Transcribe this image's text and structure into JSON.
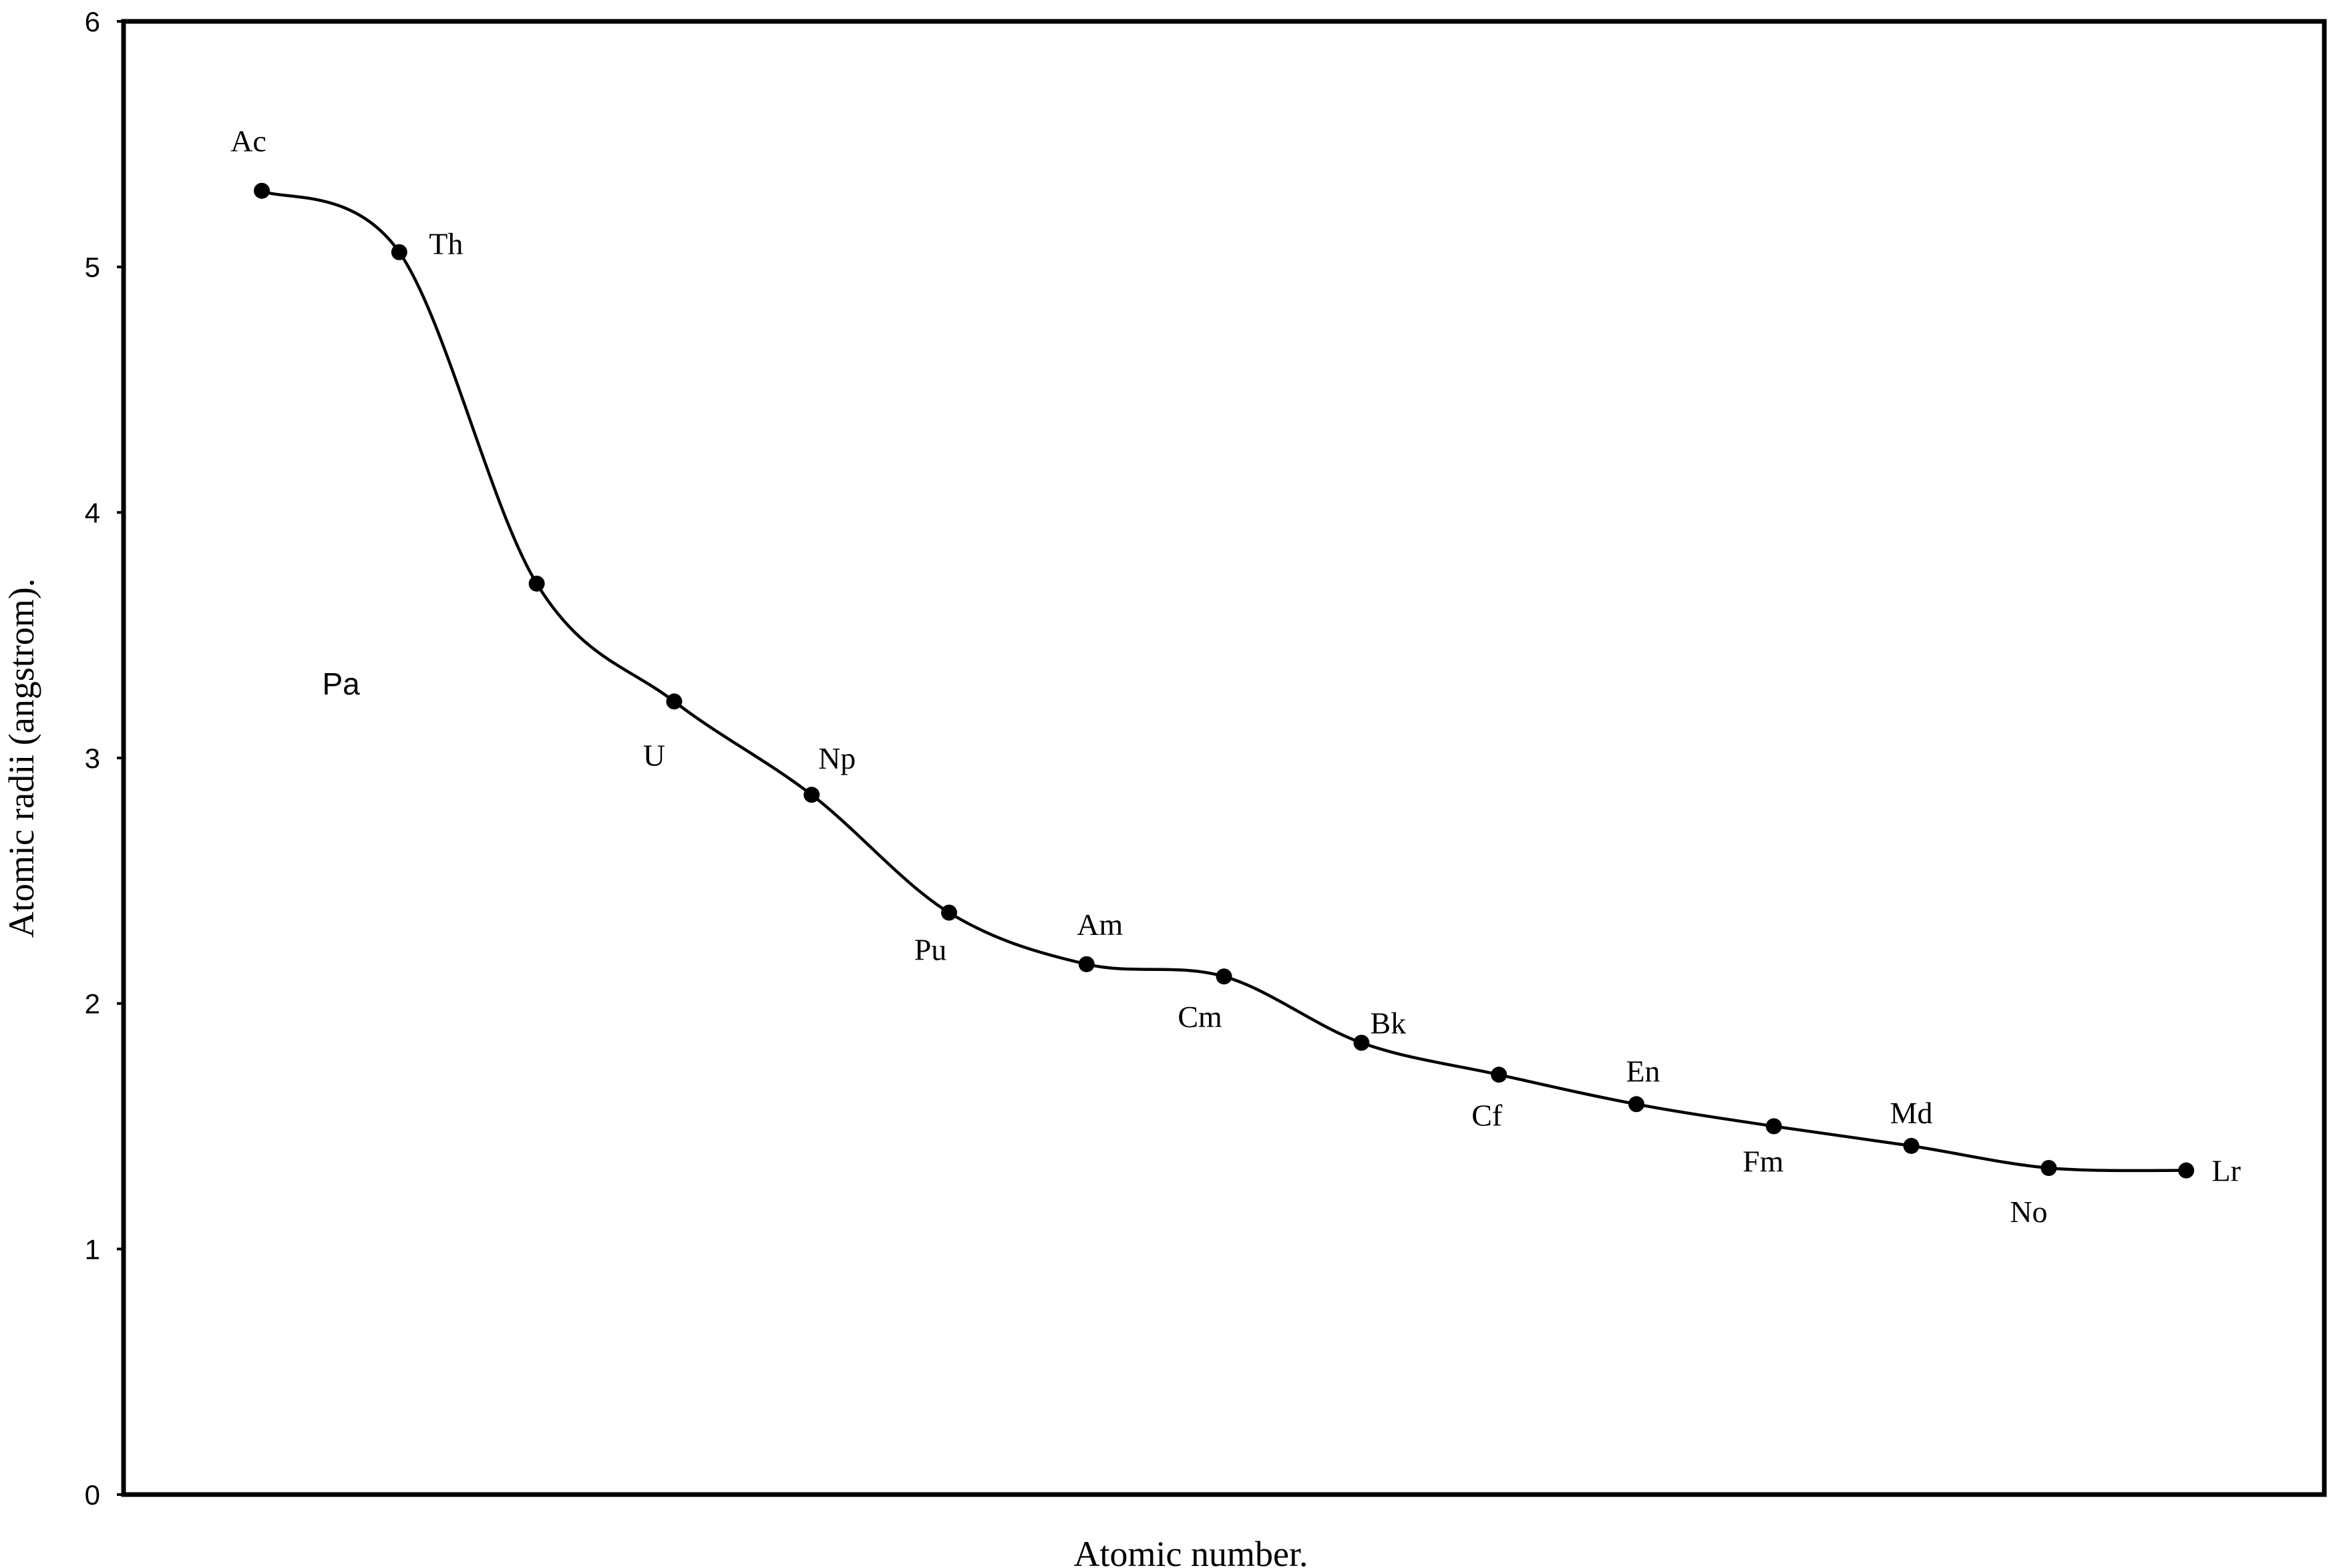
{
  "chart_data": {
    "type": "line",
    "title": "",
    "xlabel": "Atomic number.",
    "ylabel": "Atomic radii (angstrom).",
    "ylim": [
      0,
      6
    ],
    "yticks": [
      "0",
      "1",
      "2",
      "3",
      "4",
      "5",
      "6"
    ],
    "grid": false,
    "legend": "none",
    "colors": {
      "line": "#000000",
      "frame": "#000000"
    },
    "series": [
      {
        "points": [
          {
            "label": "Ac",
            "y": 5.31
          },
          {
            "label": "Th",
            "y": 5.06
          },
          {
            "label": "Pa",
            "y": 3.71
          },
          {
            "label": "U",
            "y": 3.23
          },
          {
            "label": "Np",
            "y": 2.85
          },
          {
            "label": "Pu",
            "y": 2.37
          },
          {
            "label": "Am",
            "y": 2.16
          },
          {
            "label": "Cm",
            "y": 2.11
          },
          {
            "label": "Bk",
            "y": 1.84
          },
          {
            "label": "Cf",
            "y": 1.71
          },
          {
            "label": "En",
            "y": 1.59
          },
          {
            "label": "Fm",
            "y": 1.5
          },
          {
            "label": "Md",
            "y": 1.42
          },
          {
            "label": "No",
            "y": 1.33
          },
          {
            "label": "Lr",
            "y": 1.32
          }
        ]
      }
    ]
  }
}
